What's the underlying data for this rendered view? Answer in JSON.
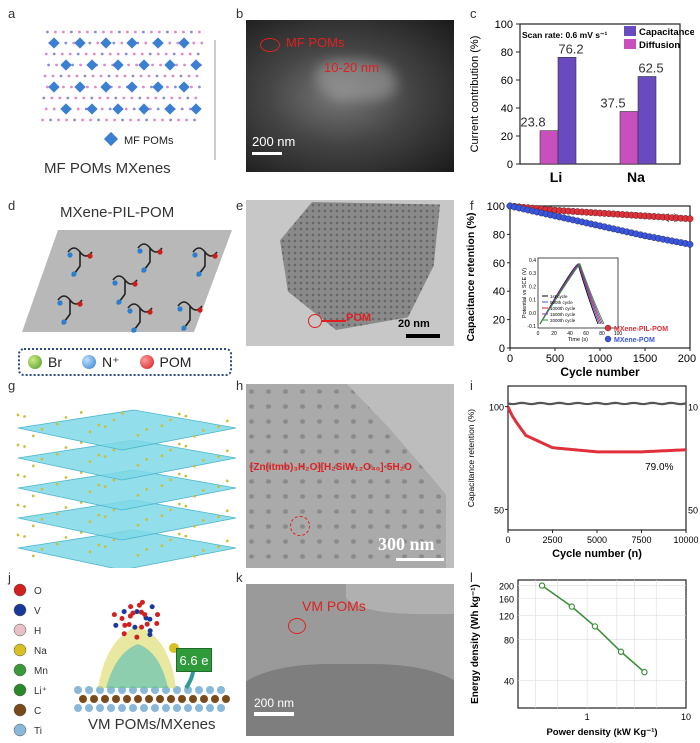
{
  "panels": {
    "a": {
      "letter": "a",
      "legend": "MF POMs",
      "caption": "MF POMs MXenes"
    },
    "b": {
      "letter": "b",
      "label": "MF POMs",
      "size": "10-20 nm",
      "scale": "200 nm"
    },
    "c": {
      "letter": "c",
      "scan_rate": "Scan rate: 0.6 mV s⁻¹",
      "ylabel": "Current contribution (%)",
      "yticks": [
        "0",
        "20",
        "40",
        "60",
        "80",
        "100"
      ],
      "legend": [
        "Capacitance",
        "Diffusion"
      ],
      "categories": [
        "Li",
        "Na"
      ],
      "bar_labels": [
        "23.8",
        "76.2",
        "37.5",
        "62.5"
      ]
    },
    "d": {
      "letter": "d",
      "title": "MXene-PIL-POM",
      "legend": [
        "Br",
        "N⁺",
        "POM"
      ]
    },
    "e": {
      "letter": "e",
      "pointer": "POM",
      "scale": "20 nm"
    },
    "f": {
      "letter": "f",
      "corner": "(a)",
      "ylabel": "Capacitance retention (%)",
      "xlabel": "Cycle number",
      "yticks": [
        "0",
        "20",
        "40",
        "60",
        "80",
        "100"
      ],
      "xticks": [
        "0",
        "500",
        "1000",
        "1500",
        "2000"
      ],
      "legend": [
        "MXene-PIL-POM",
        "MXene-POM"
      ],
      "inset": {
        "ylabel": "Potential vs SCE (V)",
        "xlabel": "Time (s)",
        "yticks": [
          "0.4",
          "0.3",
          "0.2",
          "0.1",
          "0.0",
          "-0.1"
        ],
        "xticks": [
          "0",
          "20",
          "40",
          "60",
          "80",
          "100"
        ],
        "legend": [
          "1st cycle",
          "500th cycle",
          "1000th cycle",
          "1500th cycle",
          "2000th cycle"
        ]
      }
    },
    "g": {
      "letter": "g"
    },
    "h": {
      "letter": "h",
      "formula": "[Zn(itmb)₃H₂O][H₂SiW₁₂O₄₀]·5H₂O",
      "scale": "300 nm"
    },
    "i": {
      "letter": "i",
      "ylabel": "Capacitance retention (%)",
      "xlabel": "Cycle number (n)",
      "yticks": [
        "50",
        "100"
      ],
      "right_ticks": [
        "50",
        "100"
      ],
      "xticks": [
        "0",
        "2500",
        "5000",
        "7500",
        "10000"
      ],
      "annotation": "79.0%"
    },
    "j": {
      "letter": "j",
      "legend": [
        "O",
        "V",
        "H",
        "Na",
        "Mn",
        "Li⁺",
        "C",
        "Ti"
      ],
      "transfer": "6.6 e",
      "caption": "VM POMs/MXenes"
    },
    "k": {
      "letter": "k",
      "label": "VM POMs",
      "scale": "200 nm"
    },
    "l": {
      "letter": "l",
      "ylabel": "Energy density (Wh kg⁻¹)",
      "xlabel": "Power density (kW Kg⁻¹)",
      "yticks": [
        "200",
        "160",
        "120",
        "80",
        "40"
      ],
      "xticks": [
        "1",
        "10"
      ]
    }
  },
  "colors": {
    "capacitance": "#6a4bbf",
    "diffusion": "#c94fbf",
    "pil": "#e0303a",
    "pom": "#3a55e0",
    "green_line": "#3e8f3a",
    "gray": "#555555"
  },
  "chart_data": [
    {
      "type": "bar",
      "title": "",
      "categories": [
        "Li",
        "Na"
      ],
      "series": [
        {
          "name": "Diffusion",
          "values": [
            23.8,
            37.5
          ]
        },
        {
          "name": "Capacitance",
          "values": [
            76.2,
            62.5
          ]
        }
      ],
      "xlabel": "",
      "ylabel": "Current contribution (%)",
      "ylim": [
        0,
        100
      ]
    },
    {
      "type": "scatter",
      "title": "",
      "xlabel": "Cycle number",
      "ylabel": "Capacitance retention (%)",
      "xlim": [
        0,
        2000
      ],
      "ylim": [
        0,
        100
      ],
      "series": [
        {
          "name": "MXene-PIL-POM",
          "x": [
            0,
            500,
            1000,
            1500,
            2000
          ],
          "y": [
            100,
            97,
            95,
            93,
            91
          ]
        },
        {
          "name": "MXene-POM",
          "x": [
            0,
            500,
            1000,
            1500,
            2000
          ],
          "y": [
            100,
            93,
            86,
            79,
            73
          ]
        }
      ]
    },
    {
      "type": "line",
      "title": "",
      "xlabel": "Cycle number (n)",
      "ylabel": "Capacitance retention (%)",
      "xlim": [
        0,
        10000
      ],
      "series": [
        {
          "name": "",
          "x": [
            0,
            200,
            500,
            1000,
            2500,
            5000,
            7500,
            10000
          ],
          "y": [
            100,
            96,
            92,
            86,
            80,
            78,
            78,
            79
          ]
        }
      ]
    },
    {
      "type": "line",
      "title": "",
      "xlabel": "Power density (kW Kg⁻¹)",
      "ylabel": "Energy density (Wh kg⁻¹)",
      "log_x": true,
      "log_y": true,
      "series": [
        {
          "name": "",
          "x": [
            0.35,
            0.7,
            1.2,
            2.2,
            3.8
          ],
          "y": [
            200,
            140,
            100,
            65,
            46
          ]
        }
      ]
    }
  ]
}
